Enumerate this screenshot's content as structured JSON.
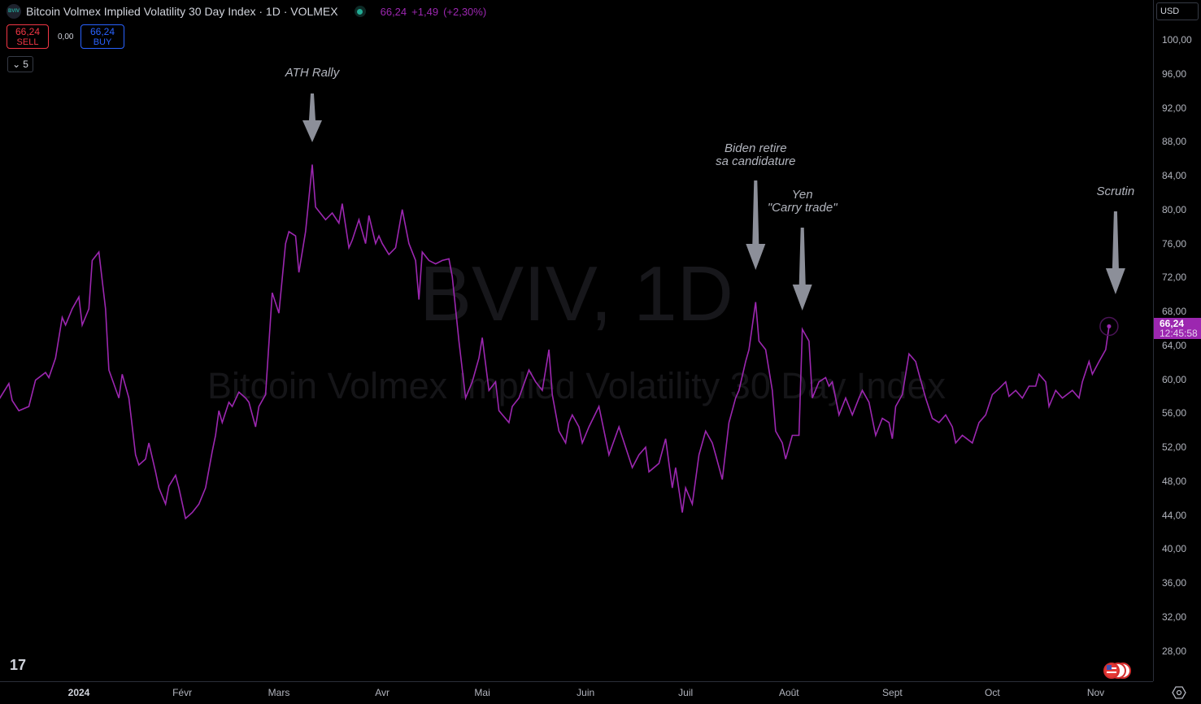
{
  "header": {
    "logo_text": "BVIV",
    "title": "Bitcoin Volmex Implied Volatility 30 Day Index · 1D · VOLMEX",
    "last": "66,24",
    "change": "+1,49",
    "change_pct": "(+2,30%)",
    "status_color": "#22ab94"
  },
  "trade": {
    "sell_price": "66,24",
    "sell_label": "SELL",
    "spread": "0,00",
    "buy_price": "66,24",
    "buy_label": "BUY"
  },
  "indicators_toggle": {
    "count": "5",
    "icon": "chevron-down-icon"
  },
  "currency": "USD",
  "price_label": {
    "value": "66,24",
    "countdown": "12:45:58"
  },
  "watermark": {
    "symbol": "BVIV, 1D",
    "name": "Bitcoin Volmex Implied Volatility 30 Day Index"
  },
  "annotations": [
    {
      "lines": [
        "ATH Rally"
      ],
      "date": "2024-03-11"
    },
    {
      "lines": [
        "Biden retire",
        "sa candidature"
      ],
      "date": "2024-07-22"
    },
    {
      "lines": [
        "Yen",
        "\"Carry trade\""
      ],
      "date": "2024-08-05"
    },
    {
      "lines": [
        "Scrutin"
      ],
      "date": "2024-11-05"
    }
  ],
  "chart_data": {
    "type": "line",
    "title": "Bitcoin Volmex Implied Volatility 30 Day Index",
    "line_color": "#9c27b0",
    "ylim": [
      26,
      102
    ],
    "y_ticks": [
      "100,00",
      "96,00",
      "92,00",
      "88,00",
      "84,00",
      "80,00",
      "76,00",
      "72,00",
      "68,00",
      "64,00",
      "60,00",
      "56,00",
      "52,00",
      "48,00",
      "44,00",
      "40,00",
      "36,00",
      "32,00",
      "28,00"
    ],
    "x_ticks": [
      "2024",
      "Févr",
      "Mars",
      "Avr",
      "Mai",
      "Juin",
      "Juil",
      "Août",
      "Sept",
      "Oct",
      "Nov"
    ],
    "grid": false,
    "points": [
      [
        "2023-12-08",
        57.6
      ],
      [
        "2023-12-11",
        59.5
      ],
      [
        "2023-12-12",
        57.5
      ],
      [
        "2023-12-14",
        56.3
      ],
      [
        "2023-12-17",
        56.8
      ],
      [
        "2023-12-19",
        59.9
      ],
      [
        "2023-12-22",
        60.8
      ],
      [
        "2023-12-23",
        60.2
      ],
      [
        "2023-12-25",
        62.5
      ],
      [
        "2023-12-27",
        67.3
      ],
      [
        "2023-12-28",
        66.4
      ],
      [
        "2023-12-30",
        68.3
      ],
      [
        "2024-01-01",
        69.7
      ],
      [
        "2024-01-02",
        66.4
      ],
      [
        "2024-01-04",
        68.3
      ],
      [
        "2024-01-05",
        74.0
      ],
      [
        "2024-01-07",
        75.0
      ],
      [
        "2024-01-09",
        68.3
      ],
      [
        "2024-01-10",
        61.1
      ],
      [
        "2024-01-13",
        57.8
      ],
      [
        "2024-01-14",
        60.6
      ],
      [
        "2024-01-16",
        57.8
      ],
      [
        "2024-01-18",
        51.1
      ],
      [
        "2024-01-19",
        49.9
      ],
      [
        "2024-01-21",
        50.6
      ],
      [
        "2024-01-22",
        52.5
      ],
      [
        "2024-01-24",
        49.1
      ],
      [
        "2024-01-25",
        47.2
      ],
      [
        "2024-01-27",
        45.3
      ],
      [
        "2024-01-28",
        47.4
      ],
      [
        "2024-01-30",
        48.7
      ],
      [
        "2024-01-31",
        47.2
      ],
      [
        "2024-02-02",
        43.6
      ],
      [
        "2024-02-04",
        44.3
      ],
      [
        "2024-02-06",
        45.3
      ],
      [
        "2024-02-08",
        47.2
      ],
      [
        "2024-02-10",
        51.5
      ],
      [
        "2024-02-11",
        53.4
      ],
      [
        "2024-02-12",
        56.3
      ],
      [
        "2024-02-13",
        54.9
      ],
      [
        "2024-02-15",
        57.3
      ],
      [
        "2024-02-16",
        56.8
      ],
      [
        "2024-02-18",
        58.5
      ],
      [
        "2024-02-20",
        57.8
      ],
      [
        "2024-02-21",
        57.3
      ],
      [
        "2024-02-23",
        54.4
      ],
      [
        "2024-02-24",
        56.8
      ],
      [
        "2024-02-26",
        58.2
      ],
      [
        "2024-02-28",
        70.2
      ],
      [
        "2024-03-01",
        67.8
      ],
      [
        "2024-03-03",
        76.0
      ],
      [
        "2024-03-04",
        77.4
      ],
      [
        "2024-03-06",
        76.9
      ],
      [
        "2024-03-07",
        72.6
      ],
      [
        "2024-03-09",
        77.4
      ],
      [
        "2024-03-11",
        85.3
      ],
      [
        "2024-03-12",
        80.3
      ],
      [
        "2024-03-15",
        78.8
      ],
      [
        "2024-03-17",
        79.6
      ],
      [
        "2024-03-19",
        78.4
      ],
      [
        "2024-03-20",
        80.7
      ],
      [
        "2024-03-22",
        75.5
      ],
      [
        "2024-03-23",
        76.4
      ],
      [
        "2024-03-25",
        78.8
      ],
      [
        "2024-03-27",
        76.0
      ],
      [
        "2024-03-28",
        79.3
      ],
      [
        "2024-03-30",
        76.0
      ],
      [
        "2024-03-31",
        76.9
      ],
      [
        "2024-04-01",
        76.0
      ],
      [
        "2024-04-03",
        74.7
      ],
      [
        "2024-04-05",
        75.5
      ],
      [
        "2024-04-07",
        80.0
      ],
      [
        "2024-04-09",
        76.0
      ],
      [
        "2024-04-11",
        74.0
      ],
      [
        "2024-04-12",
        69.4
      ],
      [
        "2024-04-13",
        75.0
      ],
      [
        "2024-04-15",
        74.0
      ],
      [
        "2024-04-17",
        73.6
      ],
      [
        "2024-04-19",
        74.0
      ],
      [
        "2024-04-21",
        74.2
      ],
      [
        "2024-04-22",
        72.1
      ],
      [
        "2024-04-24",
        64.5
      ],
      [
        "2024-04-26",
        57.8
      ],
      [
        "2024-04-28",
        59.7
      ],
      [
        "2024-04-30",
        62.5
      ],
      [
        "2024-05-01",
        64.9
      ],
      [
        "2024-05-03",
        58.7
      ],
      [
        "2024-05-05",
        59.7
      ],
      [
        "2024-05-06",
        56.3
      ],
      [
        "2024-05-09",
        54.9
      ],
      [
        "2024-05-10",
        56.8
      ],
      [
        "2024-05-12",
        57.8
      ],
      [
        "2024-05-15",
        61.1
      ],
      [
        "2024-05-17",
        59.7
      ],
      [
        "2024-05-19",
        58.7
      ],
      [
        "2024-05-21",
        63.5
      ],
      [
        "2024-05-22",
        58.2
      ],
      [
        "2024-05-24",
        53.9
      ],
      [
        "2024-05-26",
        52.5
      ],
      [
        "2024-05-27",
        54.9
      ],
      [
        "2024-05-28",
        55.8
      ],
      [
        "2024-05-30",
        54.4
      ],
      [
        "2024-05-31",
        52.5
      ],
      [
        "2024-06-02",
        54.4
      ],
      [
        "2024-06-05",
        56.8
      ],
      [
        "2024-06-06",
        54.9
      ],
      [
        "2024-06-08",
        51.1
      ],
      [
        "2024-06-09",
        52.2
      ],
      [
        "2024-06-11",
        54.4
      ],
      [
        "2024-06-13",
        52.0
      ],
      [
        "2024-06-15",
        49.6
      ],
      [
        "2024-06-17",
        51.1
      ],
      [
        "2024-06-19",
        52.0
      ],
      [
        "2024-06-20",
        49.1
      ],
      [
        "2024-06-23",
        50.1
      ],
      [
        "2024-06-25",
        53.0
      ],
      [
        "2024-06-27",
        47.2
      ],
      [
        "2024-06-28",
        49.6
      ],
      [
        "2024-06-30",
        44.3
      ],
      [
        "2024-07-01",
        47.2
      ],
      [
        "2024-07-03",
        45.3
      ],
      [
        "2024-07-05",
        51.1
      ],
      [
        "2024-07-07",
        53.9
      ],
      [
        "2024-07-09",
        52.5
      ],
      [
        "2024-07-10",
        51.1
      ],
      [
        "2024-07-12",
        48.2
      ],
      [
        "2024-07-14",
        54.9
      ],
      [
        "2024-07-16",
        57.8
      ],
      [
        "2024-07-17",
        58.7
      ],
      [
        "2024-07-19",
        62.1
      ],
      [
        "2024-07-20",
        63.5
      ],
      [
        "2024-07-22",
        69.1
      ],
      [
        "2024-07-23",
        64.5
      ],
      [
        "2024-07-25",
        63.5
      ],
      [
        "2024-07-27",
        58.7
      ],
      [
        "2024-07-28",
        53.9
      ],
      [
        "2024-07-30",
        52.5
      ],
      [
        "2024-07-31",
        50.6
      ],
      [
        "2024-08-02",
        53.4
      ],
      [
        "2024-08-04",
        53.4
      ],
      [
        "2024-08-05",
        65.9
      ],
      [
        "2024-08-07",
        64.5
      ],
      [
        "2024-08-08",
        57.8
      ],
      [
        "2024-08-10",
        59.7
      ],
      [
        "2024-08-12",
        60.2
      ],
      [
        "2024-08-13",
        59.2
      ],
      [
        "2024-08-14",
        59.7
      ],
      [
        "2024-08-16",
        55.8
      ],
      [
        "2024-08-18",
        57.8
      ],
      [
        "2024-08-20",
        55.8
      ],
      [
        "2024-08-22",
        57.8
      ],
      [
        "2024-08-23",
        58.7
      ],
      [
        "2024-08-25",
        57.3
      ],
      [
        "2024-08-27",
        53.4
      ],
      [
        "2024-08-29",
        55.4
      ],
      [
        "2024-08-31",
        54.9
      ],
      [
        "2024-09-01",
        53.0
      ],
      [
        "2024-09-02",
        56.8
      ],
      [
        "2024-09-04",
        58.2
      ],
      [
        "2024-09-06",
        63.0
      ],
      [
        "2024-09-08",
        62.1
      ],
      [
        "2024-09-09",
        60.6
      ],
      [
        "2024-09-11",
        57.8
      ],
      [
        "2024-09-13",
        55.4
      ],
      [
        "2024-09-15",
        54.9
      ],
      [
        "2024-09-17",
        55.8
      ],
      [
        "2024-09-19",
        54.4
      ],
      [
        "2024-09-20",
        52.5
      ],
      [
        "2024-09-22",
        53.4
      ],
      [
        "2024-09-25",
        52.5
      ],
      [
        "2024-09-27",
        54.9
      ],
      [
        "2024-09-29",
        55.8
      ],
      [
        "2024-10-01",
        58.2
      ],
      [
        "2024-10-03",
        58.9
      ],
      [
        "2024-10-05",
        59.7
      ],
      [
        "2024-10-06",
        58.0
      ],
      [
        "2024-10-08",
        58.7
      ],
      [
        "2024-10-10",
        57.8
      ],
      [
        "2024-10-12",
        59.2
      ],
      [
        "2024-10-14",
        59.2
      ],
      [
        "2024-10-15",
        60.6
      ],
      [
        "2024-10-17",
        59.7
      ],
      [
        "2024-10-18",
        56.8
      ],
      [
        "2024-10-20",
        58.7
      ],
      [
        "2024-10-22",
        57.8
      ],
      [
        "2024-10-25",
        58.7
      ],
      [
        "2024-10-27",
        57.8
      ],
      [
        "2024-10-28",
        59.7
      ],
      [
        "2024-10-30",
        62.1
      ],
      [
        "2024-10-31",
        60.6
      ],
      [
        "2024-11-02",
        62.1
      ],
      [
        "2024-11-04",
        63.5
      ],
      [
        "2024-11-05",
        66.24
      ]
    ]
  }
}
